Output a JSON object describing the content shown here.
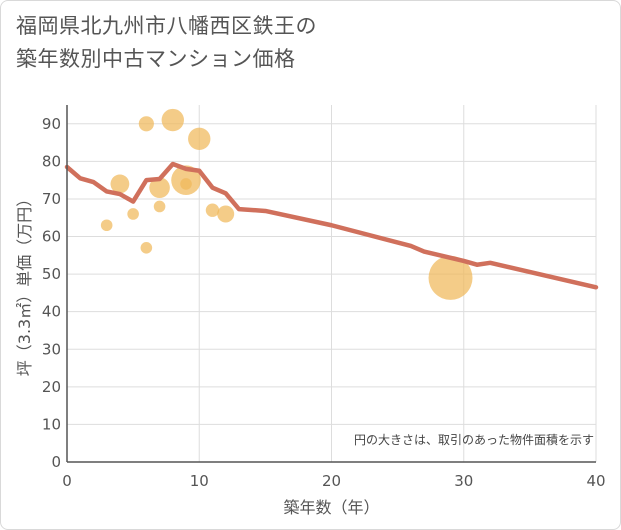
{
  "title_line1": "福岡県北九州市八幡西区鉄王の",
  "title_line2": "築年数別中古マンション価格",
  "chart_data": {
    "type": "scatter",
    "title": "福岡県北九州市八幡西区鉄王の築年数別中古マンション価格",
    "xlabel": "築年数（年）",
    "ylabel": "坪（3.3㎡）単価（万円）",
    "xlim": [
      0,
      40
    ],
    "ylim": [
      0,
      95
    ],
    "xticks": [
      0,
      10,
      20,
      30,
      40
    ],
    "yticks": [
      0,
      10,
      20,
      30,
      40,
      50,
      60,
      70,
      80,
      90
    ],
    "grid": true,
    "note": "円の大きさは、取引のあった物件面積を示す",
    "colors": {
      "bubble": "#f0b95a",
      "line": "#d0705c",
      "grid": "#dddddd",
      "axis": "#555555"
    },
    "bubbles": [
      {
        "x": 3,
        "y": 63,
        "size": 1
      },
      {
        "x": 4,
        "y": 74,
        "size": 3
      },
      {
        "x": 5,
        "y": 66,
        "size": 1
      },
      {
        "x": 6,
        "y": 90,
        "size": 2
      },
      {
        "x": 6,
        "y": 57,
        "size": 1
      },
      {
        "x": 7,
        "y": 73,
        "size": 3.5
      },
      {
        "x": 7,
        "y": 68,
        "size": 1
      },
      {
        "x": 8,
        "y": 91,
        "size": 4
      },
      {
        "x": 9,
        "y": 75,
        "size": 6
      },
      {
        "x": 9,
        "y": 74,
        "size": 1
      },
      {
        "x": 10,
        "y": 86,
        "size": 4
      },
      {
        "x": 11,
        "y": 67,
        "size": 1.5
      },
      {
        "x": 12,
        "y": 66,
        "size": 2.5
      },
      {
        "x": 29,
        "y": 49,
        "size": 10
      }
    ],
    "line": {
      "x": [
        0,
        1,
        2,
        3,
        4,
        5,
        6,
        7,
        8,
        9,
        10,
        11,
        12,
        13,
        15,
        20,
        26,
        27,
        30,
        31,
        32,
        40
      ],
      "y": [
        78.5,
        75.5,
        74.5,
        72,
        71.3,
        69.3,
        75,
        75.3,
        79.3,
        78,
        77.5,
        73,
        71.5,
        67.3,
        66.8,
        63,
        57.5,
        56,
        53.5,
        52.5,
        53,
        46.5
      ]
    }
  }
}
